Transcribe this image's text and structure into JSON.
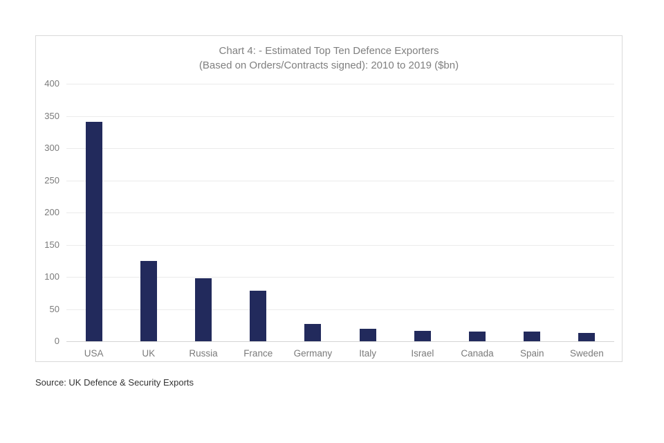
{
  "chart_data": {
    "type": "bar",
    "title": "Chart 4: - Estimated Top Ten Defence Exporters (Based on Orders/Contracts signed): 2010 to 2019 ($bn)",
    "title_lines": [
      "Chart 4: - Estimated Top Ten Defence Exporters",
      "(Based on Orders/Contracts signed): 2010 to 2019 ($bn)"
    ],
    "categories": [
      "USA",
      "UK",
      "Russia",
      "France",
      "Germany",
      "Italy",
      "Israel",
      "Canada",
      "Spain",
      "Sweden"
    ],
    "values": [
      341,
      125,
      98,
      78,
      27,
      19.5,
      16,
      15,
      15,
      13
    ],
    "xlabel": "",
    "ylabel": "",
    "ylim": [
      0,
      400
    ],
    "yticks": [
      0,
      50,
      100,
      150,
      200,
      250,
      300,
      350,
      400
    ],
    "grid": true,
    "legend": "none",
    "bar_color": "#222a5c",
    "title_color": "#7f7f7f",
    "axis_label_color": "#7a7a7a",
    "gridline_color": "#ebebeb",
    "axis_line_color": "#d4d4d4"
  },
  "source_note": "Source: UK Defence & Security Exports"
}
